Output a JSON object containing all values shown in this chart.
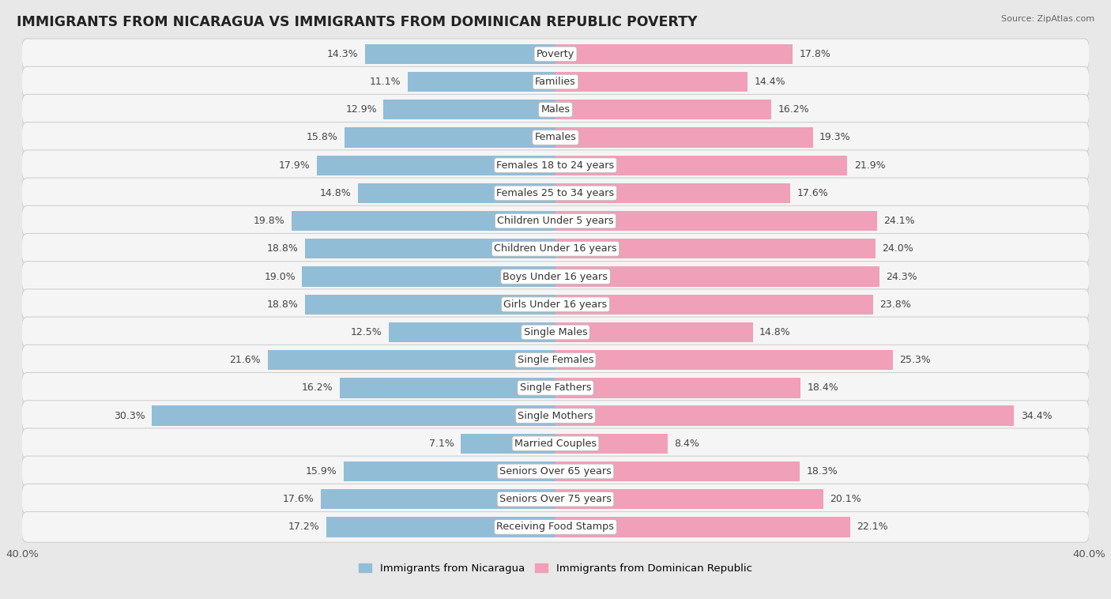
{
  "title": "IMMIGRANTS FROM NICARAGUA VS IMMIGRANTS FROM DOMINICAN REPUBLIC POVERTY",
  "source": "Source: ZipAtlas.com",
  "categories": [
    "Poverty",
    "Families",
    "Males",
    "Females",
    "Females 18 to 24 years",
    "Females 25 to 34 years",
    "Children Under 5 years",
    "Children Under 16 years",
    "Boys Under 16 years",
    "Girls Under 16 years",
    "Single Males",
    "Single Females",
    "Single Fathers",
    "Single Mothers",
    "Married Couples",
    "Seniors Over 65 years",
    "Seniors Over 75 years",
    "Receiving Food Stamps"
  ],
  "nicaragua_values": [
    14.3,
    11.1,
    12.9,
    15.8,
    17.9,
    14.8,
    19.8,
    18.8,
    19.0,
    18.8,
    12.5,
    21.6,
    16.2,
    30.3,
    7.1,
    15.9,
    17.6,
    17.2
  ],
  "dominican_values": [
    17.8,
    14.4,
    16.2,
    19.3,
    21.9,
    17.6,
    24.1,
    24.0,
    24.3,
    23.8,
    14.8,
    25.3,
    18.4,
    34.4,
    8.4,
    18.3,
    20.1,
    22.1
  ],
  "nicaragua_color": "#92bdd6",
  "dominican_color": "#f0a0b8",
  "background_color": "#e8e8e8",
  "row_bg_color": "#f5f5f5",
  "row_border_color": "#d0d0d0",
  "axis_limit": 40.0,
  "legend_nicaragua": "Immigrants from Nicaragua",
  "legend_dominican": "Immigrants from Dominican Republic",
  "bar_height": 0.72,
  "label_fontsize": 9.2,
  "value_fontsize": 9.0,
  "title_fontsize": 12.5
}
